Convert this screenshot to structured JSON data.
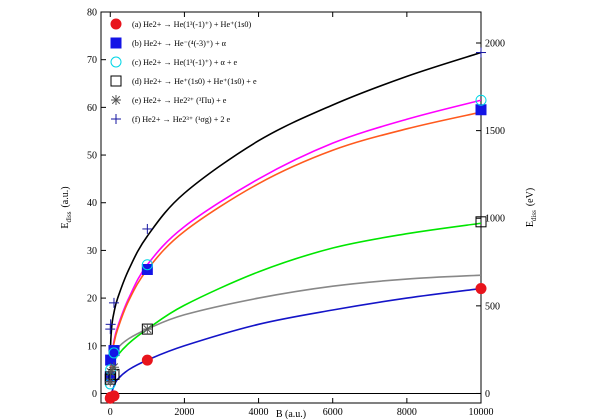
{
  "chart_data": {
    "type": "scatter",
    "title": "",
    "xlabel": "B (a.u.)",
    "ylabel_left": "E_diss (a.u.)",
    "ylabel_left_main": "E",
    "ylabel_left_sub": "diss",
    "ylabel_left_unit": "(a.u.)",
    "ylabel_right_main": "E",
    "ylabel_right_sub": "diss",
    "ylabel_right_unit": "(eV)",
    "xlim": [
      -250,
      10000
    ],
    "ylim": [
      -2,
      80
    ],
    "y2lim_ev": [
      -54.4,
      2176.9
    ],
    "x_ticks": [
      "0",
      "2000",
      "4000",
      "6000",
      "8000",
      "10000"
    ],
    "y_ticks": [
      "0",
      "10",
      "20",
      "30",
      "40",
      "50",
      "60",
      "70",
      "80"
    ],
    "y2_ticks": [
      "0",
      "500",
      "1000",
      "1500",
      "2000"
    ],
    "grid": false,
    "legend_position": "top-left",
    "series": [
      {
        "key": "a",
        "name": "(a) He2+ → He(1³(-1)⁺) + He⁺(1s0)",
        "marker": "filled-circle",
        "color": "#e8141c",
        "x": [
          0,
          10,
          100,
          1000,
          10000
        ],
        "y": [
          -1.0,
          -0.8,
          -0.5,
          7.0,
          22.0
        ]
      },
      {
        "key": "b",
        "name": "(b) He2+ → He⁻(⁴(-3)⁺) + α",
        "marker": "filled-square",
        "color": "#1414e6",
        "x": [
          0,
          10,
          100,
          1000,
          10000
        ],
        "y": [
          3.5,
          7.0,
          9.0,
          26.0,
          59.5
        ]
      },
      {
        "key": "c",
        "name": "(c) He2+ → He(1³(-1)⁺) + α + e",
        "marker": "open-circle",
        "color": "#00d6e6",
        "x": [
          0,
          10,
          100,
          1000,
          10000
        ],
        "y": [
          2.0,
          5.0,
          8.5,
          27.0,
          61.5
        ]
      },
      {
        "key": "d",
        "name": "(d) He2+ → He⁺(1s0) + He⁺(1s0) + e",
        "marker": "open-square",
        "color": "#000000",
        "x": [
          0,
          10,
          100,
          1000,
          10000
        ],
        "y": [
          3.0,
          3.5,
          4.0,
          13.5,
          36.0
        ]
      },
      {
        "key": "e",
        "name": "(e) He2+ → He2²⁺ (³Πu) + e",
        "marker": "asterisk",
        "color": "#555555",
        "x": [
          0,
          10,
          100,
          1000
        ],
        "y": [
          2.5,
          4.5,
          5.5,
          13.5
        ]
      },
      {
        "key": "f",
        "name": "(f) He2+ → He2³⁺ (¹σg) + 2 e",
        "marker": "plus",
        "color": "#1414a0",
        "x": [
          0,
          10,
          100,
          1000,
          10000
        ],
        "y": [
          13.5,
          14.5,
          19.0,
          34.5,
          71.5
        ]
      }
    ],
    "fit_curves": [
      {
        "color": "#000000",
        "x": [
          5,
          20,
          50,
          100,
          200,
          500,
          1000,
          2000,
          4000,
          6000,
          8000,
          10000
        ],
        "y": [
          9.5,
          12.0,
          14.8,
          17.0,
          20.0,
          26.0,
          33.0,
          42.0,
          53.0,
          60.5,
          66.5,
          71.5
        ]
      },
      {
        "color": "#ff00ff",
        "x": [
          10,
          50,
          100,
          200,
          500,
          1000,
          2000,
          4000,
          6000,
          8000,
          10000
        ],
        "y": [
          5.0,
          8.0,
          11.0,
          14.0,
          20.0,
          27.0,
          35.0,
          45.0,
          52.5,
          57.5,
          61.5
        ]
      },
      {
        "color": "#ff5a1e",
        "x": [
          10,
          50,
          100,
          200,
          500,
          1000,
          2000,
          4000,
          6000,
          8000,
          10000
        ],
        "y": [
          5.0,
          8.0,
          10.5,
          13.5,
          19.5,
          26.0,
          34.0,
          44.0,
          51.0,
          55.5,
          59.0
        ]
      },
      {
        "color": "#00e600",
        "x": [
          10,
          100,
          200,
          500,
          1000,
          2000,
          4000,
          6000,
          8000,
          10000
        ],
        "y": [
          3.5,
          6.5,
          8.0,
          10.5,
          13.5,
          18.5,
          25.5,
          30.5,
          33.5,
          35.7
        ]
      },
      {
        "color": "#888888",
        "x": [
          10,
          100,
          200,
          500,
          1000,
          2000,
          4000,
          6000,
          8000,
          10000
        ],
        "y": [
          3.5,
          7.5,
          9.5,
          11.5,
          13.5,
          16.5,
          20.0,
          22.5,
          24.0,
          24.8
        ]
      },
      {
        "color": "#1414c8",
        "x": [
          0,
          50,
          100,
          200,
          500,
          1000,
          2000,
          4000,
          6000,
          8000,
          10000
        ],
        "y": [
          -1.0,
          0.5,
          1.5,
          3.0,
          5.0,
          7.0,
          10.0,
          14.5,
          17.5,
          20.0,
          22.0
        ]
      }
    ]
  }
}
